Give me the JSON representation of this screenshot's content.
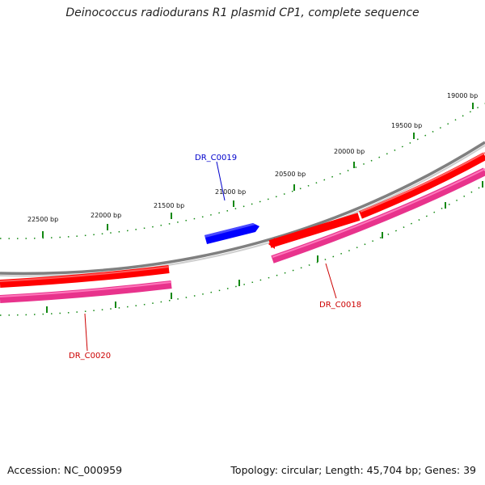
{
  "title": "Deinococcus radiodurans R1 plasmid CP1, complete sequence",
  "footer": {
    "accession": "Accession: NC_000959",
    "summary": "Topology: circular; Length: 45,704 bp; Genes: 39"
  },
  "ticks": [
    {
      "label": "19000 bp",
      "bp": 19000
    },
    {
      "label": "19500 bp",
      "bp": 19500
    },
    {
      "label": "20000 bp",
      "bp": 20000
    },
    {
      "label": "20500 bp",
      "bp": 20500
    },
    {
      "label": "21000 bp",
      "bp": 21000
    },
    {
      "label": "21500 bp",
      "bp": 21500
    },
    {
      "label": "22000 bp",
      "bp": 22000
    },
    {
      "label": "22500 bp",
      "bp": 22500
    }
  ],
  "genes": [
    {
      "name": "DR_C0018",
      "color": "#cc0000"
    },
    {
      "name": "DR_C0019",
      "color": "#0000cc"
    },
    {
      "name": "DR_C0020",
      "color": "#cc0000"
    }
  ],
  "colors": {
    "backbone": "#8c8c8c",
    "gene_forward": "#ff0000",
    "gene_reverse": "#0000ff",
    "cds_track": "#e8338c",
    "tick": "#118811"
  }
}
